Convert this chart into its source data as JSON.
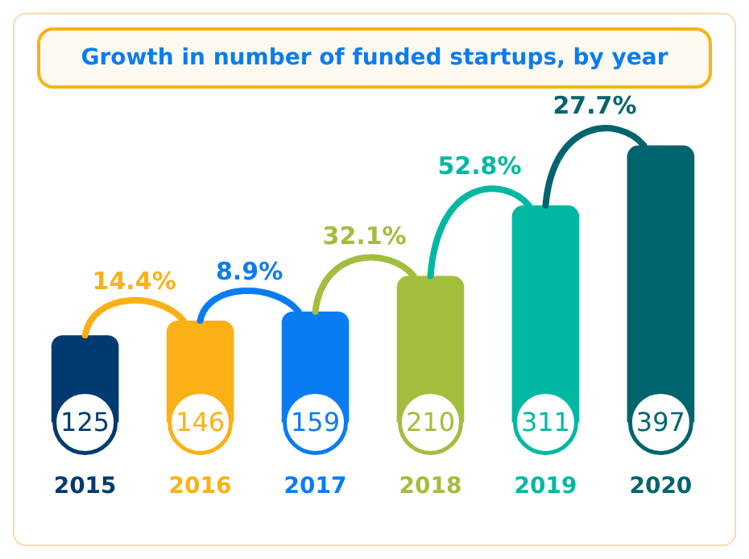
{
  "chart_data": {
    "type": "bar",
    "title": "Growth in number of funded startups, by year",
    "categories": [
      "2015",
      "2016",
      "2017",
      "2018",
      "2019",
      "2020"
    ],
    "values": [
      125,
      146,
      159,
      210,
      311,
      397
    ],
    "colors": [
      "#003a70",
      "#fbb116",
      "#0a7cf2",
      "#a3bd3d",
      "#00b8a2",
      "#00646f"
    ],
    "data_labels": true,
    "annotations": [
      "14.4%",
      "8.9%",
      "32.1%",
      "52.8%",
      "27.7%"
    ]
  }
}
